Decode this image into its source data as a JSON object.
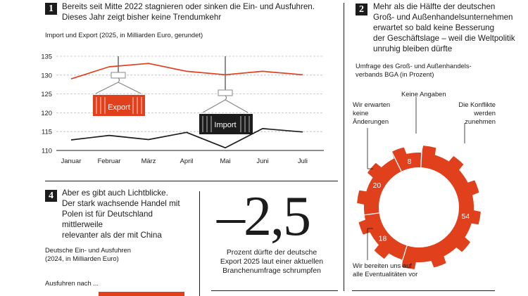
{
  "section1": {
    "number": "1",
    "headline_line1": "Bereits seit Mitte 2022 stagnieren oder sinken die Ein- und Ausfuhren.",
    "headline_line2": "Dieses Jahr zeigt bisher keine Trendumkehr",
    "subtitle": "Import und Export (2025, in Milliarden Euro, gerundet)",
    "container_export_label": "Export",
    "container_import_label": "Import"
  },
  "section2": {
    "number": "2",
    "headline_lines": [
      "Mehr als die Hälfte der deutschen",
      "Groß- und Außenhandelsunternehmen",
      "erwartet so bald keine Besserung",
      "der Geschäftslage – weil die Weltpolitik",
      "unruhig bleiben dürfte"
    ],
    "subtitle_lines": [
      "Umfrage des Groß- und Außenhandels-",
      "verbands BGA (in Prozent)"
    ],
    "label_keine_angaben": "Keine Angaben",
    "label_konflikte": [
      "Die Konflikte",
      "werden",
      "zunehmen"
    ],
    "label_keine_aenderungen": [
      "Wir erwarten",
      "keine",
      "Änderungen"
    ],
    "label_eventualitaeten": [
      "Wir bereiten uns auf",
      "alle Eventualitäten vor"
    ]
  },
  "section4": {
    "number": "4",
    "headline_lines": [
      "Aber es gibt auch Lichtblicke.",
      "Der stark wachsende Handel mit",
      "Polen ist für Deutschland mittlerweile",
      "relevanter als der mit China"
    ],
    "subtitle_lines": [
      "Deutsche Ein- und Ausfuhren",
      "(2024, in Milliarden Euro)"
    ],
    "exports_label": "Ausfuhren nach ..."
  },
  "stat": {
    "value": "–2,5",
    "caption_lines": [
      "Prozent dürfte der deutsche",
      "Export 2025 laut einer aktuellen",
      "Branchenumfrage schrumpfen"
    ]
  },
  "colors": {
    "accent": "#e0401c",
    "ink": "#1c1c1c",
    "grid": "#bdbdbd"
  },
  "chart_data": [
    {
      "type": "line",
      "title": "Import und Export (2025, in Milliarden Euro, gerundet)",
      "categories": [
        "Januar",
        "Februar",
        "März",
        "April",
        "Mai",
        "Juni",
        "Juli"
      ],
      "series": [
        {
          "name": "Export",
          "color": "#e0401c",
          "values": [
            129,
            132.2,
            133.1,
            131,
            130.1,
            131,
            130.1
          ]
        },
        {
          "name": "Import",
          "color": "#1c1c1c",
          "values": [
            112.8,
            114,
            112.9,
            114.8,
            110.7,
            115.8,
            114.9
          ]
        }
      ],
      "yticks": [
        110,
        115,
        120,
        125,
        130,
        135
      ],
      "ylim": [
        110,
        135
      ],
      "grid": true
    },
    {
      "type": "pie",
      "title": "Umfrage des Groß- und Außenhandelsverbands BGA (in Prozent)",
      "slices": [
        {
          "label": "Die Konflikte werden zunehmen",
          "value": 54
        },
        {
          "label": "Wir bereiten uns auf alle Eventualitäten vor",
          "value": 18
        },
        {
          "label": "Wir erwarten keine Änderungen",
          "value": 20
        },
        {
          "label": "Keine Angaben",
          "value": 8
        }
      ]
    }
  ]
}
